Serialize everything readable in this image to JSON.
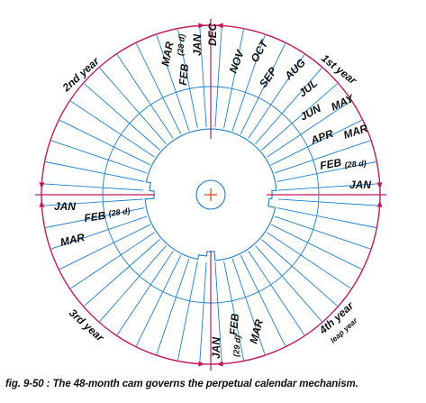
{
  "diagram": {
    "colors": {
      "outer_circle": "#c2185b",
      "cam": "#1e7fd0",
      "center_mark": "#e04010",
      "text": "#111111"
    },
    "year_labels": [
      {
        "id": "year-1",
        "text": "1st year",
        "sub": ""
      },
      {
        "id": "year-2",
        "text": "2nd year",
        "sub": ""
      },
      {
        "id": "year-3",
        "text": "3rd year",
        "sub": ""
      },
      {
        "id": "year-4",
        "text": "4th year",
        "sub": "leap year"
      }
    ],
    "month_labels": [
      {
        "id": "y1-jan",
        "text": "JAN"
      },
      {
        "id": "y1-feb",
        "text": "FEB",
        "note": "(28 d)"
      },
      {
        "id": "y1-mar",
        "text": "MAR"
      },
      {
        "id": "y1-apr",
        "text": "APR"
      },
      {
        "id": "y1-may",
        "text": "MAY"
      },
      {
        "id": "y1-jun",
        "text": "JUN"
      },
      {
        "id": "y1-jul",
        "text": "JUL"
      },
      {
        "id": "y1-aug",
        "text": "AUG"
      },
      {
        "id": "y1-sep",
        "text": "SEP"
      },
      {
        "id": "y1-oct",
        "text": "OCT"
      },
      {
        "id": "y1-nov",
        "text": "NOV"
      },
      {
        "id": "y1-dec",
        "text": "DEC"
      },
      {
        "id": "y2-jan",
        "text": "JAN"
      },
      {
        "id": "y2-feb",
        "text": "FEB",
        "note": "(28 d)"
      },
      {
        "id": "y2-mar",
        "text": "MAR"
      },
      {
        "id": "y3-jan",
        "text": "JAN"
      },
      {
        "id": "y3-feb",
        "text": "FEB",
        "note": "(28 d)"
      },
      {
        "id": "y3-mar",
        "text": "MAR"
      },
      {
        "id": "y4-jan",
        "text": "JAN"
      },
      {
        "id": "y4-feb",
        "text": "FEB",
        "note": "(29 d)"
      },
      {
        "id": "y4-mar",
        "text": "MAR"
      }
    ]
  },
  "caption": "fig. 9-50 : The 48-month cam governs the perpetual calendar mechanism."
}
